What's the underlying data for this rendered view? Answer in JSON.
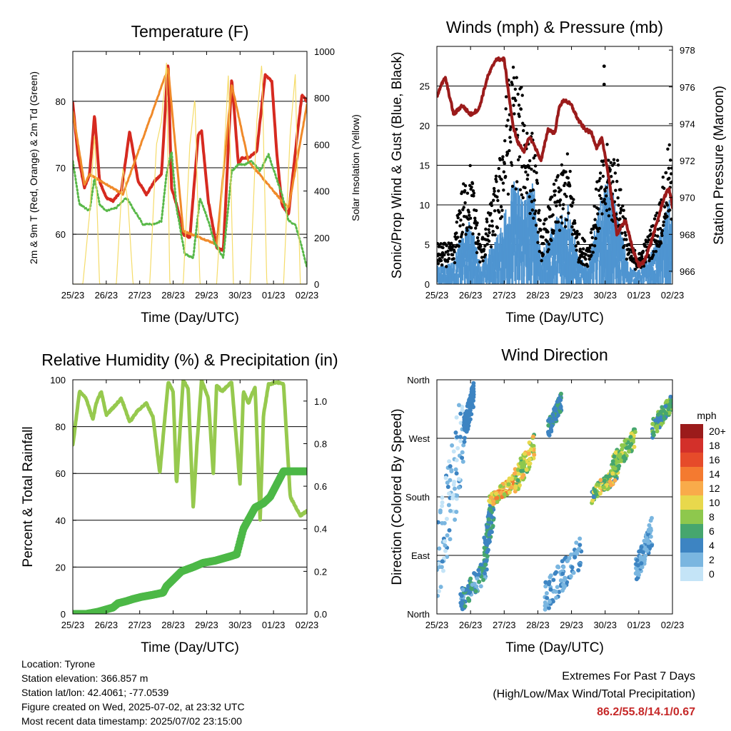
{
  "x_ticks": [
    "25/23",
    "26/23",
    "27/23",
    "28/23",
    "29/23",
    "30/23",
    "01/23",
    "02/23"
  ],
  "colors": {
    "temp2m": "#d62a20",
    "temp9m": "#f08a2a",
    "dew": "#58b848",
    "solar": "#f5dc6a",
    "gust": "#000000",
    "wind": "#4f95d1",
    "pressure": "#9b1b1b",
    "rh": "#96c94e",
    "rain": "#4cb847"
  },
  "chart_data": [
    {
      "id": "temperature",
      "type": "line",
      "title": "Temperature (F)",
      "xlabel": "Time (Day/UTC)",
      "ylabel": "2m & 9m T (Red, Orange) & 2m Td (Green)",
      "ylabel_right": "Solar Insolation (Yellow)",
      "xlim": [
        0,
        7
      ],
      "ylim": [
        52.5,
        87.5
      ],
      "ylim_right": [
        0,
        1000
      ],
      "yticks": [
        60,
        70,
        80
      ],
      "yticks_right": [
        0,
        200,
        400,
        600,
        800,
        1000
      ],
      "grid": true,
      "series": [
        {
          "key": "temp2m",
          "x": [
            0,
            0.15,
            0.35,
            0.5,
            0.65,
            0.8,
            1,
            1.2,
            1.45,
            1.7,
            1.95,
            2.2,
            2.45,
            2.65,
            2.85,
            2.95,
            3.1,
            3.3,
            3.5,
            3.75,
            3.85,
            4.05,
            4.3,
            4.5,
            4.75,
            4.95,
            5.05,
            5.25,
            5.5,
            5.75,
            5.95,
            6.1,
            6.25,
            6.45,
            6.7,
            6.85,
            7
          ],
          "y": [
            79.7,
            72,
            67,
            69,
            78,
            68,
            65.5,
            65,
            66.5,
            75.5,
            68,
            66,
            68,
            69,
            86,
            67,
            64.5,
            60,
            59.5,
            75,
            75.5,
            65,
            58,
            57.5,
            83.5,
            70.5,
            71.5,
            71.5,
            72.5,
            84,
            83,
            72,
            64.5,
            63,
            74.5,
            81,
            80
          ]
        },
        {
          "key": "temp9m",
          "x": [
            0,
            0.35,
            0.5,
            1.5,
            2.85,
            3.3,
            4.3,
            4.75,
            5.25,
            6.25,
            6.45,
            7
          ],
          "y": [
            78.5,
            67.5,
            69,
            66,
            85,
            60.5,
            58.5,
            82.5,
            71,
            65,
            64,
            79.5
          ]
        },
        {
          "key": "dew",
          "x": [
            0,
            0.2,
            0.5,
            0.65,
            0.8,
            1,
            1.3,
            1.6,
            1.85,
            2.1,
            2.4,
            2.65,
            2.8,
            2.95,
            3.1,
            3.35,
            3.6,
            3.8,
            4.05,
            4.25,
            4.5,
            4.75,
            4.95,
            5.15,
            5.35,
            5.6,
            5.85,
            6.05,
            6.25,
            6.45,
            6.65,
            6.85,
            7
          ],
          "y": [
            71,
            64.5,
            63.5,
            68.5,
            64.5,
            63.5,
            64,
            65.5,
            63.5,
            61.5,
            61.5,
            62,
            69,
            72.5,
            64,
            57,
            56.5,
            65.5,
            62,
            58.5,
            56.5,
            69.5,
            70.5,
            70.5,
            71,
            69.5,
            72,
            69,
            66,
            62,
            61.5,
            58,
            55
          ]
        },
        {
          "key": "solar",
          "axis": "right",
          "x": [
            0,
            0.3,
            0.5,
            0.65,
            0.8,
            1.3,
            1.5,
            1.65,
            1.8,
            2.3,
            2.5,
            2.65,
            2.8,
            2.9,
            3.3,
            3.5,
            3.65,
            3.8,
            4.3,
            4.5,
            4.65,
            4.8,
            5.3,
            5.5,
            5.65,
            5.8,
            6.3,
            6.5,
            6.65,
            6.8,
            7
          ],
          "y": [
            0,
            0,
            300,
            650,
            0,
            0,
            500,
            350,
            0,
            0,
            600,
            700,
            950,
            0,
            0,
            600,
            800,
            0,
            0,
            500,
            900,
            0,
            0,
            700,
            950,
            0,
            0,
            650,
            900,
            0,
            0
          ]
        }
      ]
    },
    {
      "id": "winds",
      "type": "line",
      "title": "Winds (mph) & Pressure (mb)",
      "xlabel": "Time (Day/UTC)",
      "ylabel": "Sonic/Prop Wind & Gust (Blue, Black)",
      "ylabel_right": "Station Pressure (Maroon)",
      "xlim": [
        0,
        7
      ],
      "ylim": [
        0,
        30
      ],
      "ylim_right": [
        965.3,
        978.2
      ],
      "yticks": [
        0,
        5,
        10,
        15,
        20,
        25
      ],
      "yticks_right": [
        966,
        968,
        970,
        972,
        974,
        976,
        978
      ],
      "grid": true,
      "series": [
        {
          "key": "wind",
          "x": [
            0,
            0.5,
            0.7,
            1,
            1.3,
            1.6,
            1.9,
            2.1,
            2.3,
            2.6,
            2.9,
            3.1,
            3.5,
            3.9,
            4.2,
            4.5,
            4.8,
            5.1,
            5.4,
            5.7,
            6,
            6.3,
            6.6,
            6.9,
            7
          ],
          "y": [
            2,
            2.5,
            5,
            7,
            2,
            4,
            6,
            10,
            11,
            10,
            11,
            3,
            7,
            9,
            3,
            2,
            8,
            12,
            7,
            2,
            1.5,
            3,
            5,
            9,
            7
          ]
        },
        {
          "key": "gust",
          "x": [
            0,
            0.5,
            0.7,
            1,
            1.3,
            1.6,
            1.9,
            2.1,
            2.3,
            2.6,
            2.9,
            3.1,
            3.5,
            3.9,
            4.2,
            4.5,
            4.8,
            5.1,
            5.4,
            5.7,
            6,
            6.3,
            6.6,
            6.9,
            7
          ],
          "y": [
            4,
            4,
            9,
            12,
            4,
            8,
            13,
            20,
            22,
            18,
            14,
            5,
            10,
            13,
            5,
            4,
            11,
            14,
            12,
            4,
            3,
            5,
            8,
            14,
            11
          ]
        },
        {
          "key": "pressure",
          "axis": "right",
          "x": [
            0,
            0.1,
            0.25,
            0.5,
            0.75,
            1,
            1.25,
            1.5,
            1.75,
            2,
            2.25,
            2.4,
            2.6,
            2.75,
            2.9,
            3.1,
            3.3,
            3.5,
            3.65,
            3.8,
            4,
            4.2,
            4.4,
            4.6,
            4.75,
            4.9,
            5.1,
            5.35,
            5.6,
            5.8,
            6,
            6.15,
            6.35,
            6.55,
            6.75,
            6.9,
            7
          ],
          "y": [
            975.5,
            976,
            976.5,
            974.5,
            975,
            974.5,
            974.8,
            976.5,
            977.5,
            977.5,
            974,
            973,
            972.5,
            973.3,
            972.8,
            972,
            973.7,
            973.5,
            975,
            975.3,
            975,
            974.2,
            973.7,
            973.5,
            972.7,
            973.2,
            971.2,
            968,
            968.8,
            967.3,
            966.3,
            966.5,
            967.5,
            968.7,
            970,
            970.5,
            969.5
          ]
        }
      ]
    },
    {
      "id": "humidity",
      "type": "line",
      "title": "Relative Humidity (%) & Precipitation (in)",
      "xlabel": "Time (Day/UTC)",
      "ylabel": "Percent & Total Rainfall",
      "xlim": [
        0,
        7
      ],
      "ylim": [
        0,
        100
      ],
      "ylim_right": [
        0,
        1.1
      ],
      "yticks": [
        0,
        20,
        40,
        60,
        80,
        100
      ],
      "yticks_right": [
        0,
        0.2,
        0.4,
        0.6,
        0.8,
        1.0
      ],
      "grid": true,
      "series": [
        {
          "key": "rh",
          "x": [
            0,
            0.2,
            0.4,
            0.6,
            0.7,
            0.85,
            1,
            1.2,
            1.45,
            1.7,
            1.95,
            2.2,
            2.4,
            2.6,
            2.85,
            3,
            3.1,
            3.3,
            3.45,
            3.6,
            3.7,
            3.85,
            4.05,
            4.2,
            4.3,
            4.45,
            4.75,
            5,
            5.1,
            5.25,
            5.45,
            5.6,
            5.7,
            5.85,
            6.1,
            6.3,
            6.5,
            6.8,
            7
          ],
          "y": [
            72,
            95,
            92,
            83,
            90,
            95,
            85,
            88,
            92,
            82,
            87,
            90,
            84,
            60,
            99,
            95,
            55,
            100,
            96,
            45,
            70,
            100,
            92,
            60,
            98,
            95,
            99,
            55,
            95,
            90,
            97,
            40,
            85,
            98,
            99,
            98,
            50,
            42,
            44
          ]
        },
        {
          "key": "rain",
          "axis": "right",
          "x": [
            0,
            0.4,
            0.75,
            1.2,
            1.35,
            1.6,
            1.8,
            2.05,
            2.4,
            2.7,
            2.8,
            3.25,
            3.6,
            3.9,
            4.25,
            4.7,
            4.9,
            5.1,
            5.45,
            5.7,
            5.9,
            6.3,
            6.65,
            7
          ],
          "y": [
            0,
            0,
            0.01,
            0.03,
            0.05,
            0.06,
            0.07,
            0.08,
            0.09,
            0.1,
            0.13,
            0.2,
            0.22,
            0.24,
            0.25,
            0.27,
            0.28,
            0.4,
            0.5,
            0.52,
            0.55,
            0.67,
            0.67,
            0.67
          ]
        }
      ]
    },
    {
      "id": "direction",
      "type": "scatter",
      "title": "Wind Direction",
      "xlabel": "Time (Day/UTC)",
      "ylabel": "Direction (Colored By Speed)",
      "xlim": [
        0,
        7
      ],
      "ylim": [
        0,
        360
      ],
      "ytick_labels": [
        "North",
        "East",
        "South",
        "West",
        "North"
      ],
      "yticks": [
        0,
        90,
        180,
        270,
        360
      ],
      "grid": true,
      "legend": {
        "title": "mph",
        "labels": [
          "20+",
          "18",
          "16",
          "14",
          "12",
          "10",
          "8",
          "6",
          "4",
          "2",
          "0"
        ],
        "colors": [
          "#9b1b1b",
          "#d3302a",
          "#e64b2a",
          "#f47a30",
          "#f9ab4a",
          "#e8d84c",
          "#8ec84d",
          "#46a66e",
          "#3d84c2",
          "#7ab6e0",
          "#c4e4f7"
        ]
      },
      "clusters": [
        {
          "x": [
            0,
            0.8
          ],
          "dir": [
            0,
            360
          ],
          "speed": [
            0,
            4
          ]
        },
        {
          "x": [
            0.7,
            1.5
          ],
          "dir": [
            0,
            90
          ],
          "speed": [
            2,
            6
          ]
        },
        {
          "x": [
            0.8,
            1.1
          ],
          "dir": [
            260,
            360
          ],
          "speed": [
            3,
            5
          ]
        },
        {
          "x": [
            1.4,
            1.7
          ],
          "dir": [
            60,
            200
          ],
          "speed": [
            3,
            6
          ]
        },
        {
          "x": [
            1.55,
            2.3
          ],
          "dir": [
            160,
            215
          ],
          "speed": [
            8,
            14
          ]
        },
        {
          "x": [
            2.3,
            2.9
          ],
          "dir": [
            180,
            280
          ],
          "speed": [
            6,
            12
          ]
        },
        {
          "x": [
            3.3,
            3.7
          ],
          "dir": [
            270,
            340
          ],
          "speed": [
            3,
            6
          ]
        },
        {
          "x": [
            3.2,
            4.3
          ],
          "dir": [
            0,
            120
          ],
          "speed": [
            1,
            4
          ]
        },
        {
          "x": [
            4.6,
            5.4
          ],
          "dir": [
            170,
            230
          ],
          "speed": [
            4,
            12
          ]
        },
        {
          "x": [
            5.2,
            5.9
          ],
          "dir": [
            210,
            290
          ],
          "speed": [
            6,
            10
          ]
        },
        {
          "x": [
            5.9,
            6.4
          ],
          "dir": [
            40,
            150
          ],
          "speed": [
            1,
            4
          ]
        },
        {
          "x": [
            6.4,
            7
          ],
          "dir": [
            270,
            340
          ],
          "speed": [
            4,
            9
          ]
        }
      ]
    }
  ],
  "info": [
    "Location: Tyrone",
    "Station elevation: 366.857 m",
    "Station lat/lon: 42.4061; -77.0539",
    "Figure created on Wed, 2025-07-02, at 23:32 UTC",
    "Most recent data timestamp: 2025/07/02 23:15:00"
  ],
  "extremes": {
    "title": "Extremes For Past 7 Days",
    "subtitle": "(High/Low/Max Wind/Total Precipitation)",
    "values": "86.2/55.8/14.1/0.67"
  }
}
